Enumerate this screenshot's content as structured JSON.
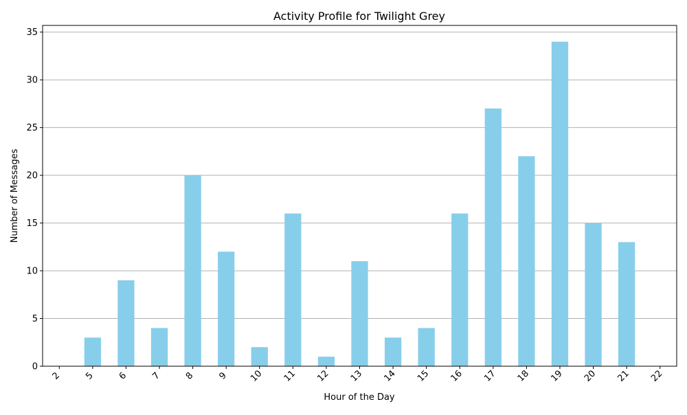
{
  "chart_data": {
    "type": "bar",
    "title": "Activity Profile for Twilight Grey",
    "xlabel": "Hour of the Day",
    "ylabel": "Number of Messages",
    "categories": [
      "2",
      "5",
      "6",
      "7",
      "8",
      "9",
      "10",
      "11",
      "12",
      "13",
      "14",
      "15",
      "16",
      "17",
      "18",
      "19",
      "20",
      "21",
      "22"
    ],
    "values": [
      0,
      3,
      9,
      4,
      20,
      12,
      2,
      16,
      1,
      11,
      3,
      4,
      16,
      27,
      22,
      34,
      15,
      13,
      0
    ],
    "ylim": [
      0,
      35.7
    ],
    "yticks": [
      "0",
      "5",
      "10",
      "15",
      "20",
      "25",
      "30",
      "35"
    ],
    "grid": "y-axis",
    "bar_color": "#87CEEB",
    "grid_color": "#b0b0b0"
  }
}
